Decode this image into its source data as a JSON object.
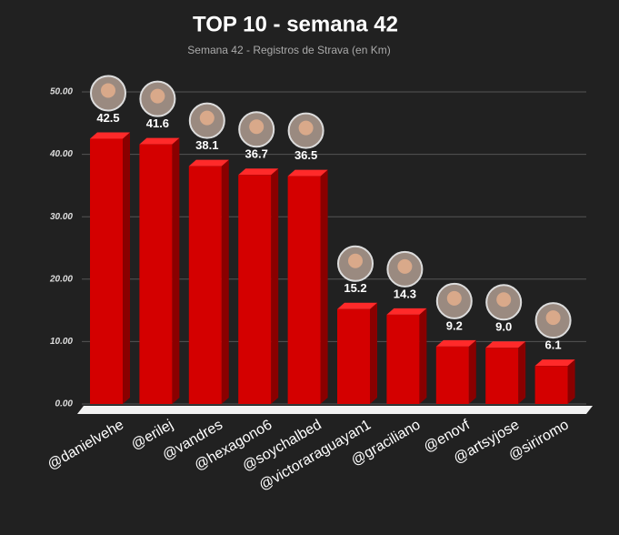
{
  "chart_data": {
    "type": "bar",
    "title": "TOP 10 - semana 42",
    "subtitle": "Semana 42 - Registros de Strava (en Km)",
    "categories": [
      "@danielvehe",
      "@erilej",
      "@vandres",
      "@hexagono6",
      "@soychalbed",
      "@victoraraguayan1",
      "@graciliano",
      "@enovf",
      "@artsyjose",
      "@siriromo"
    ],
    "values": [
      42.5,
      41.6,
      38.1,
      36.7,
      36.5,
      15.2,
      14.3,
      9.2,
      9.0,
      6.1
    ],
    "value_labels": [
      "42.5",
      "41.6",
      "38.1",
      "36.7",
      "36.5",
      "15.2",
      "14.3",
      "9.2",
      "9.0",
      "6.1"
    ],
    "color": "#d40000",
    "ylim": [
      0,
      50
    ],
    "yticks": [
      {
        "value": 0,
        "label": "0.00"
      },
      {
        "value": 10,
        "label": "10.00"
      },
      {
        "value": 20,
        "label": "20.00"
      },
      {
        "value": 30,
        "label": "30.00"
      },
      {
        "value": 40,
        "label": "40.00"
      },
      {
        "value": 50,
        "label": "50.00"
      }
    ],
    "grid": true
  }
}
